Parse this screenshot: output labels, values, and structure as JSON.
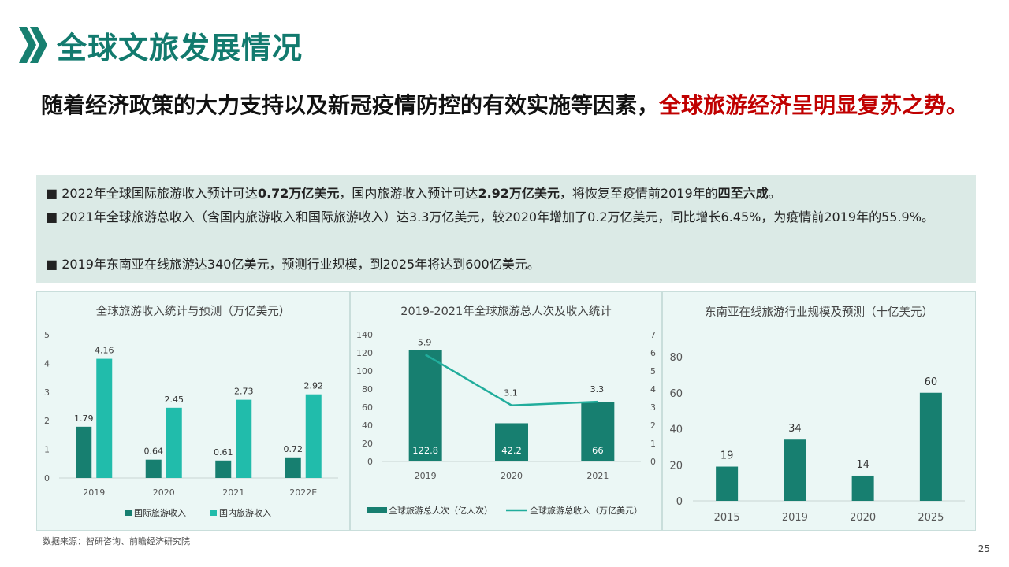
{
  "slide": {
    "title": "全球文旅发展情况",
    "headline_plain": "随着经济政策的大力支持以及新冠疫情防控的有效实施等因素，",
    "headline_highlight": "全球旅游经济呈明显复苏之势。",
    "page_number": "25",
    "source": "数据来源：智研咨询、前瞻经济研究院",
    "colors": {
      "title": "#127a6e",
      "highlight": "#c00000",
      "dark_series": "#177f70",
      "light_series": "#21bcab",
      "info_bg": "#dbeae6",
      "panel_bg": "#ebf7f5"
    }
  },
  "bullets": [
    {
      "marker": "■",
      "parts": [
        {
          "t": " 2022年全球国际旅游收入预计可达",
          "b": false
        },
        {
          "t": "0.72万亿美元",
          "b": true
        },
        {
          "t": "，国内旅游收入预计可达",
          "b": false
        },
        {
          "t": "2.92万亿美元",
          "b": true
        },
        {
          "t": "，将恢复至疫情前2019年的",
          "b": false
        },
        {
          "t": "四至六成",
          "b": true
        },
        {
          "t": "。",
          "b": false
        }
      ]
    },
    {
      "marker": "■",
      "parts": [
        {
          "t": " 2021年全球旅游总收入（含国内旅游收入和国际旅游收入）达3.3万亿美元，较2020年增加了0.2万亿美元，同比增长6.45%，为疫情前2019年的55.9%。",
          "b": false
        }
      ]
    },
    {
      "marker": "■",
      "parts": [
        {
          "t": " 2019年东南亚在线旅游达340亿美元，预测行业规模，到2025年将达到600亿美元。",
          "b": false
        }
      ]
    }
  ],
  "chart_data": [
    {
      "type": "bar",
      "title": "全球旅游收入统计与预测（万亿美元）",
      "categories": [
        "2019",
        "2020",
        "2021",
        "2022E"
      ],
      "series": [
        {
          "name": "国际旅游收入",
          "values": [
            1.79,
            0.64,
            0.61,
            0.72
          ],
          "color": "#177f70"
        },
        {
          "name": "国内旅游收入",
          "values": [
            4.16,
            2.45,
            2.73,
            2.92
          ],
          "color": "#21bcab"
        }
      ],
      "ylim": [
        0,
        5
      ],
      "yticks": [
        0,
        1,
        2,
        3,
        4,
        5
      ],
      "legend": "bottom",
      "grid": false
    },
    {
      "type": "bar",
      "title": "2019-2021年全球旅游总人次及收入统计",
      "categories": [
        "2019",
        "2020",
        "2021"
      ],
      "series": [
        {
          "name": "全球旅游总人次（亿人次）",
          "type": "bar",
          "axis": "left",
          "values": [
            122.8,
            42.2,
            66
          ],
          "color": "#177f70"
        },
        {
          "name": "全球旅游总收入（万亿美元）",
          "type": "line",
          "axis": "right",
          "values": [
            5.9,
            3.1,
            3.3
          ],
          "color": "#21ad9c"
        }
      ],
      "ylim": [
        0,
        140
      ],
      "yticks": [
        0,
        20,
        40,
        60,
        80,
        100,
        120,
        140
      ],
      "y2lim": [
        0,
        7
      ],
      "y2ticks": [
        0,
        1,
        2,
        3,
        4,
        5,
        6,
        7
      ],
      "legend": "bottom",
      "grid": false
    },
    {
      "type": "bar",
      "title": "东南亚在线旅游行业规模及预测（十亿美元）",
      "categories": [
        "2015",
        "2019",
        "2020",
        "2025"
      ],
      "series": [
        {
          "name": "",
          "values": [
            19,
            34,
            14,
            60
          ],
          "color": "#177f70"
        }
      ],
      "ylim": [
        0,
        80
      ],
      "yticks": [
        0,
        20,
        40,
        60,
        80
      ],
      "legend": "none",
      "grid": false
    }
  ]
}
